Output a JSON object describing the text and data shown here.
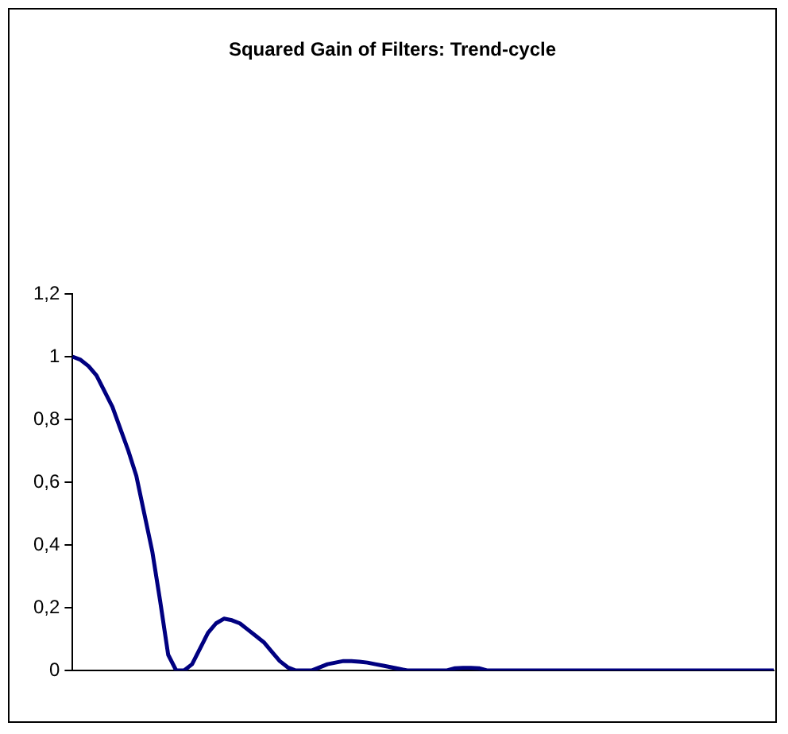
{
  "chart_data": {
    "type": "line",
    "title": "Squared Gain of Filters: Trend-cycle",
    "categories": [
      null,
      null,
      null,
      null,
      null,
      null,
      null,
      null,
      null,
      null,
      null,
      null,
      null,
      null,
      null,
      null,
      null,
      null,
      null,
      null,
      null,
      null,
      null,
      null,
      null,
      null,
      null,
      null,
      null,
      null,
      null,
      null,
      null,
      null,
      null,
      null,
      null,
      null,
      null,
      null,
      null,
      null,
      null,
      null,
      null,
      null,
      null,
      null,
      null,
      null,
      null,
      null,
      null,
      null,
      null,
      null,
      null,
      null,
      null,
      null,
      null,
      null,
      null,
      null,
      null,
      null,
      null,
      null,
      null,
      null,
      null,
      null,
      null,
      null,
      null,
      null,
      null,
      null,
      null,
      null,
      null,
      null,
      null,
      null,
      null,
      null,
      null,
      null,
      null
    ],
    "series": [
      {
        "color": "#000080",
        "values": [
          1.0,
          0.99,
          0.97,
          0.94,
          0.89,
          0.84,
          0.77,
          0.7,
          0.62,
          0.5,
          0.38,
          0.22,
          0.05,
          0,
          0,
          0.02,
          0.07,
          0.12,
          0.15,
          0.165,
          0.16,
          0.15,
          0.13,
          0.11,
          0.09,
          0.06,
          0.03,
          0.01,
          0,
          0,
          0,
          0.01,
          0.02,
          0.025,
          0.03,
          0.03,
          0.028,
          0.025,
          0.02,
          0.015,
          0.01,
          0.005,
          0,
          0,
          0,
          0,
          0,
          0,
          0.007,
          0.008,
          0.008,
          0.007,
          0,
          0,
          0,
          0,
          0,
          0,
          0,
          0,
          0,
          0,
          0,
          0,
          0,
          0,
          0,
          0,
          0,
          0,
          0,
          0,
          0,
          0,
          0,
          0,
          0,
          0,
          0,
          0,
          0,
          0,
          0,
          0,
          0,
          0,
          0,
          0,
          0
        ]
      }
    ],
    "ylim": [
      0,
      1.2
    ],
    "yticks": [
      0,
      {
        "value": 0.2,
        "label": "0,2"
      },
      {
        "value": 0.4,
        "label": "0,4"
      },
      {
        "value": 0.6,
        "label": "0,6"
      },
      {
        "value": 0.8,
        "label": "0,8"
      },
      1,
      {
        "value": 1.2,
        "label": "1,2"
      }
    ],
    "grid": false,
    "legend": false,
    "tick_labels": "y",
    "marker": "none"
  }
}
